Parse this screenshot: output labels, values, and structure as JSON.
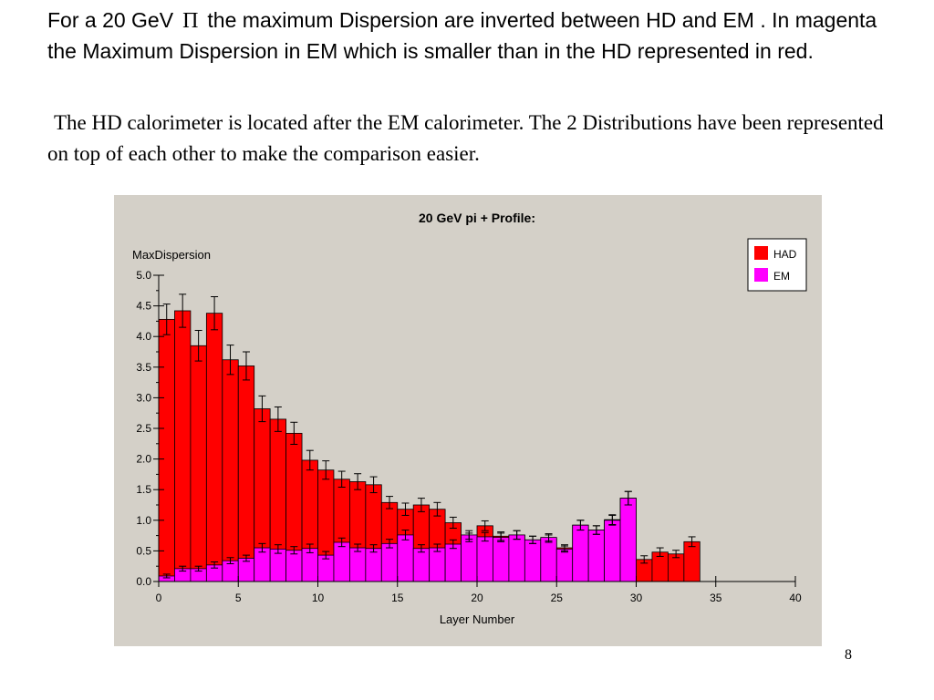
{
  "slide": {
    "heading_part1": "For a 20 GeV",
    "pi_symbol": "Π",
    "heading_part2": "the maximum Dispersion are inverted between HD and EM . In magenta the Maximum Dispersion in EM which is smaller than in the HD represented in red.",
    "subtext": "The HD calorimeter is located after the EM calorimeter. The 2 Distributions have been represented on top of each other to make the comparison easier.",
    "page_number": "8"
  },
  "chart_data": {
    "type": "bar",
    "title": "20 GeV pi + Profile:",
    "xlabel": "Layer Number",
    "ylabel": "MaxDispersion",
    "xlim": [
      0,
      40
    ],
    "ylim": [
      0,
      5
    ],
    "xticks": [
      "0",
      "5",
      "10",
      "15",
      "20",
      "25",
      "30",
      "35",
      "40"
    ],
    "yticks": [
      "0.0",
      "0.5",
      "1.0",
      "1.5",
      "2.0",
      "2.5",
      "3.0",
      "3.5",
      "4.0",
      "4.5",
      "5.0"
    ],
    "bin_width": 1,
    "legend_position": "top-right",
    "background_color": "#d4d0c8",
    "series": [
      {
        "name": "HAD",
        "color": "#ff0000",
        "x": [
          0,
          1,
          2,
          3,
          4,
          5,
          6,
          7,
          8,
          9,
          10,
          11,
          12,
          13,
          14,
          15,
          16,
          17,
          18,
          19,
          20,
          21,
          22,
          23,
          24,
          25,
          26,
          27,
          28,
          29,
          30,
          31,
          32,
          33
        ],
        "values": [
          4.28,
          4.42,
          3.85,
          4.38,
          3.62,
          3.52,
          2.82,
          2.65,
          2.42,
          1.98,
          1.82,
          1.67,
          1.63,
          1.58,
          1.29,
          1.18,
          1.25,
          1.18,
          0.96,
          0.72,
          0.91,
          0.74,
          0.76,
          0.68,
          0.7,
          0.55,
          0.92,
          0.84,
          1.01,
          1.36,
          0.36,
          0.48,
          0.45,
          0.65
        ],
        "errors": [
          0.25,
          0.27,
          0.25,
          0.27,
          0.24,
          0.23,
          0.21,
          0.2,
          0.18,
          0.16,
          0.15,
          0.13,
          0.13,
          0.13,
          0.1,
          0.1,
          0.11,
          0.11,
          0.09,
          0.07,
          0.08,
          0.07,
          0.07,
          0.06,
          0.06,
          0.05,
          0.08,
          0.07,
          0.08,
          0.11,
          0.06,
          0.07,
          0.06,
          0.08
        ]
      },
      {
        "name": "EM",
        "color": "#ff00ff",
        "x": [
          0,
          1,
          2,
          3,
          4,
          5,
          6,
          7,
          8,
          9,
          10,
          11,
          12,
          13,
          14,
          15,
          16,
          17,
          18,
          19,
          20,
          21,
          22,
          23,
          24,
          25,
          26,
          27,
          28,
          29
        ],
        "values": [
          0.09,
          0.21,
          0.21,
          0.27,
          0.34,
          0.38,
          0.55,
          0.53,
          0.51,
          0.54,
          0.43,
          0.64,
          0.55,
          0.54,
          0.62,
          0.76,
          0.54,
          0.55,
          0.61,
          0.76,
          0.73,
          0.72,
          0.76,
          0.68,
          0.72,
          0.53,
          0.92,
          0.84,
          1.0,
          1.36
        ],
        "errors": [
          0.03,
          0.04,
          0.04,
          0.05,
          0.05,
          0.05,
          0.07,
          0.07,
          0.06,
          0.07,
          0.06,
          0.07,
          0.06,
          0.06,
          0.07,
          0.08,
          0.06,
          0.06,
          0.07,
          0.07,
          0.07,
          0.07,
          0.07,
          0.06,
          0.06,
          0.05,
          0.08,
          0.07,
          0.08,
          0.11
        ]
      }
    ]
  }
}
